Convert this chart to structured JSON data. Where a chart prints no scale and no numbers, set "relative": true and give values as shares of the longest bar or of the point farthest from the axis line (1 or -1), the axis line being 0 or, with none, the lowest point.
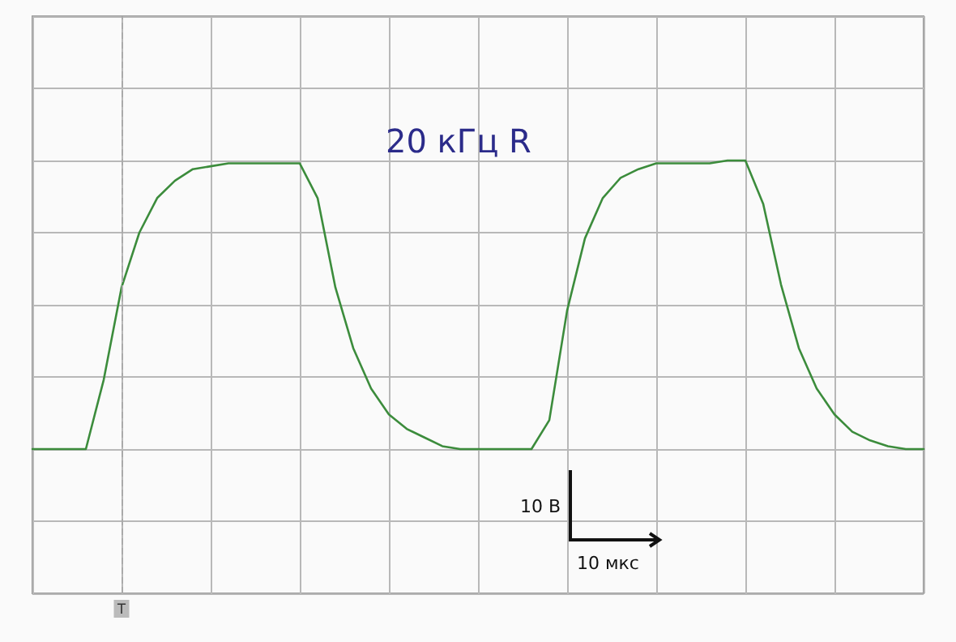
{
  "chart_data": {
    "type": "line",
    "title": "20 кГц R",
    "relative": true,
    "categories": [
      null,
      null,
      null,
      null,
      null,
      null,
      null,
      null,
      null,
      null,
      null,
      null,
      null,
      null,
      null,
      null,
      null,
      null,
      null,
      null,
      null,
      null,
      null,
      null,
      null,
      null,
      null,
      null,
      null,
      null,
      null,
      null,
      null,
      null,
      null,
      null,
      null,
      null,
      null,
      null,
      null,
      null,
      null,
      null,
      null,
      null,
      null,
      null,
      null,
      null,
      null
    ],
    "grid": true,
    "marker": "none",
    "line_style": "solid",
    "series": [
      {
        "color": "#3c8c3c",
        "values": [
          0,
          0,
          0,
          0,
          0.24,
          0.56,
          0.75,
          0.87,
          0.93,
          0.97,
          0.98,
          0.99,
          0.99,
          0.99,
          0.99,
          0.99,
          0.87,
          0.56,
          0.35,
          0.21,
          0.12,
          0.07,
          0.04,
          0.01,
          0,
          0,
          0,
          0,
          0,
          0.1,
          0.48,
          0.73,
          0.87,
          0.94,
          0.97,
          0.99,
          0.99,
          0.99,
          0.99,
          1,
          1,
          0.85,
          0.57,
          0.35,
          0.21,
          0.12,
          0.06,
          0.03,
          0.01,
          0,
          0
        ]
      }
    ],
    "annotations": [
      "10 В",
      "10 мкс",
      "T"
    ]
  }
}
